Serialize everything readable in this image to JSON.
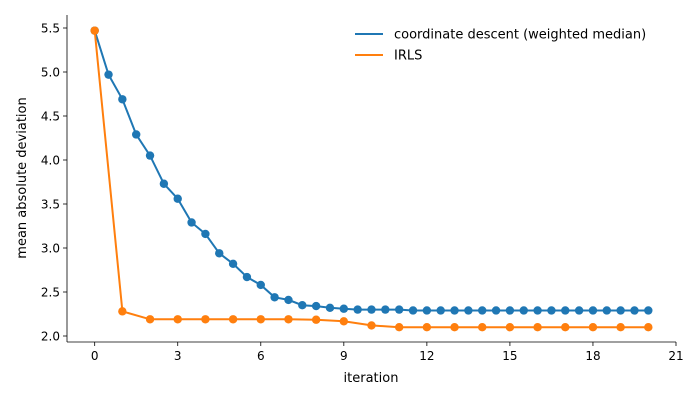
{
  "chart_data": {
    "type": "line",
    "title": "",
    "xlabel": "iteration",
    "ylabel": "mean absolute deviation",
    "xlim": [
      -1,
      21
    ],
    "ylim": [
      1.96,
      5.63
    ],
    "xticks": [
      0,
      3,
      6,
      9,
      12,
      15,
      18,
      21
    ],
    "yticks": [
      2.0,
      2.5,
      3.0,
      3.5,
      4.0,
      4.5,
      5.0,
      5.5
    ],
    "ytick_labels": [
      "2.0",
      "2.5",
      "3.0",
      "3.5",
      "4.0",
      "4.5",
      "5.0",
      "5.5"
    ],
    "grid": false,
    "legend_position": "top-right",
    "series": [
      {
        "name": "coordinate descent (weighted median)",
        "color": "#1f77b4",
        "x": [
          0,
          0.5,
          1,
          1.5,
          2,
          2.5,
          3,
          3.5,
          4,
          4.5,
          5,
          5.5,
          6,
          6.5,
          7,
          7.5,
          8,
          8.5,
          9,
          9.5,
          10,
          10.5,
          11,
          11.5,
          12,
          12.5,
          13,
          13.5,
          14,
          14.5,
          15,
          15.5,
          16,
          16.5,
          17,
          17.5,
          18,
          18.5,
          19,
          19.5,
          20
        ],
        "y": [
          5.47,
          4.97,
          4.69,
          4.29,
          4.05,
          3.73,
          3.56,
          3.29,
          3.16,
          2.94,
          2.82,
          2.67,
          2.58,
          2.44,
          2.41,
          2.35,
          2.34,
          2.32,
          2.31,
          2.3,
          2.3,
          2.3,
          2.3,
          2.29,
          2.29,
          2.29,
          2.29,
          2.29,
          2.29,
          2.29,
          2.29,
          2.29,
          2.29,
          2.29,
          2.29,
          2.29,
          2.29,
          2.29,
          2.29,
          2.29,
          2.29
        ]
      },
      {
        "name": "IRLS",
        "color": "#ff7f0e",
        "x": [
          0,
          1,
          2,
          3,
          4,
          5,
          6,
          7,
          8,
          9,
          10,
          11,
          12,
          13,
          14,
          15,
          16,
          17,
          18,
          19,
          20
        ],
        "y": [
          5.47,
          2.28,
          2.19,
          2.19,
          2.19,
          2.19,
          2.19,
          2.19,
          2.185,
          2.167,
          2.12,
          2.1,
          2.1,
          2.1,
          2.1,
          2.1,
          2.1,
          2.1,
          2.1,
          2.1,
          2.1
        ]
      }
    ]
  }
}
